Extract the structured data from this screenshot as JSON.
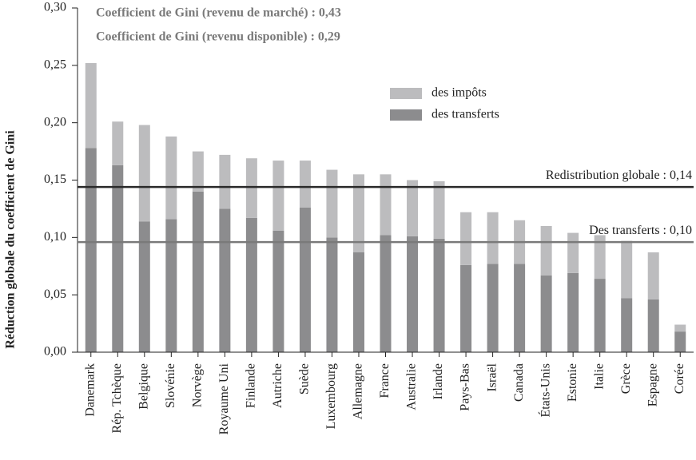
{
  "chart_data": {
    "type": "stacked_bar",
    "ylabel": "Réduction globale du coefficient de Gini",
    "annotations": [
      "Coefficient de Gini (revenu de marché) : 0,43",
      "Coefficient de Gini (revenu disponible) : 0,29"
    ],
    "categories": [
      "Danemark",
      "Rép. Tchèque",
      "Belgique",
      "Slovénie",
      "Norvège",
      "Royaume Uni",
      "Finlande",
      "Autriche",
      "Suède",
      "Luxembourg",
      "Allemagne",
      "France",
      "Australie",
      "Irlande",
      "Pays-Bas",
      "Israël",
      "Canada",
      "États-Unis",
      "Estonie",
      "Italie",
      "Grèce",
      "Espagne",
      "Corée"
    ],
    "series": [
      {
        "name": "des transferts",
        "color": "#8c8c8e",
        "values": [
          0.178,
          0.163,
          0.114,
          0.116,
          0.14,
          0.125,
          0.117,
          0.106,
          0.126,
          0.1,
          0.087,
          0.102,
          0.101,
          0.099,
          0.076,
          0.077,
          0.077,
          0.067,
          0.069,
          0.064,
          0.047,
          0.046,
          0.018
        ]
      },
      {
        "name": "des impôts",
        "color": "#bcbcbe",
        "values": [
          0.074,
          0.038,
          0.084,
          0.072,
          0.035,
          0.047,
          0.052,
          0.061,
          0.041,
          0.059,
          0.068,
          0.053,
          0.049,
          0.05,
          0.046,
          0.045,
          0.038,
          0.043,
          0.035,
          0.038,
          0.05,
          0.041,
          0.006
        ]
      }
    ],
    "legend_order": [
      1,
      0
    ],
    "hlines": [
      {
        "label": "Redistribution globale : 0,14",
        "value": 0.144,
        "color": "#2a2a2a"
      },
      {
        "label": "Des transferts : 0,10",
        "value": 0.096,
        "color": "#7a7a7a"
      }
    ],
    "ylim": [
      0,
      0.3
    ],
    "yticks": [
      {
        "value": 0,
        "label": "0,00"
      },
      {
        "value": 0.05,
        "label": "0,05"
      },
      {
        "value": 0.1,
        "label": "0,10"
      },
      {
        "value": 0.15,
        "label": "0,15"
      },
      {
        "value": 0.2,
        "label": "0,20"
      },
      {
        "value": 0.25,
        "label": "0,25"
      },
      {
        "value": 0.3,
        "label": "0,30"
      }
    ]
  }
}
